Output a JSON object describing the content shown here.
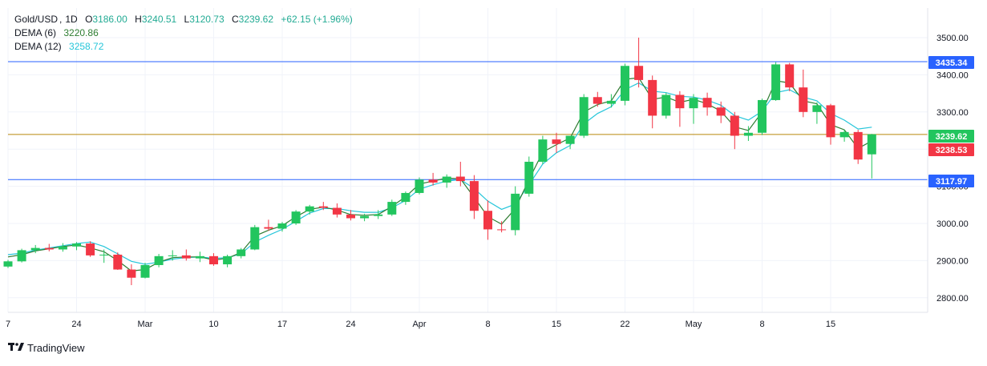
{
  "header": {
    "symbol": "Gold/USD",
    "interval": "1D",
    "o_label": "O",
    "open": "3186.00",
    "h_label": "H",
    "high": "3240.51",
    "l_label": "L",
    "low": "3120.73",
    "c_label": "C",
    "close": "3239.62",
    "change": "+62.15 (+1.96%)"
  },
  "indicators": [
    {
      "name": "DEMA (6)",
      "value": "3220.86",
      "color": "#2e7d32"
    },
    {
      "name": "DEMA (12)",
      "value": "3258.72",
      "color": "#26c6da"
    }
  ],
  "brand": {
    "name": "TradingView",
    "icon": "tradingview-logo-icon"
  },
  "colors": {
    "up": "#22c55e",
    "down": "#f23645",
    "h_line": "#2962ff",
    "price_line": "#b8860b"
  },
  "chart_data": {
    "type": "candlestick",
    "y_axis": {
      "ticks": [
        "3500.00",
        "3400.00",
        "3300.00",
        "3200.00",
        "3100.00",
        "3000.00",
        "2900.00",
        "2800.00"
      ],
      "ylim": [
        2780,
        3520
      ]
    },
    "x_axis": {
      "ticks": [
        "7",
        "24",
        "Mar",
        "10",
        "17",
        "24",
        "Apr",
        "8",
        "15",
        "22",
        "May",
        "8",
        "15"
      ]
    },
    "price_labels": [
      {
        "value": 3435.34,
        "text": "3435.34",
        "kind": "hline",
        "color": "#2962ff"
      },
      {
        "value": 3239.62,
        "text": "3239.62",
        "kind": "last",
        "color": "#22c55e"
      },
      {
        "value": 3238.53,
        "text": "3238.53",
        "kind": "last",
        "color": "#f23645"
      },
      {
        "value": 3117.97,
        "text": "3117.97",
        "kind": "hline",
        "color": "#2962ff"
      }
    ],
    "candles": [
      [
        2884,
        2902,
        2880,
        2898
      ],
      [
        2898,
        2932,
        2895,
        2928
      ],
      [
        2928,
        2942,
        2920,
        2934
      ],
      [
        2934,
        2945,
        2925,
        2930
      ],
      [
        2930,
        2947,
        2924,
        2938
      ],
      [
        2938,
        2950,
        2928,
        2946
      ],
      [
        2946,
        2952,
        2910,
        2914
      ],
      [
        2914,
        2930,
        2894,
        2916
      ],
      [
        2916,
        2922,
        2875,
        2876
      ],
      [
        2876,
        2890,
        2834,
        2854
      ],
      [
        2854,
        2894,
        2852,
        2888
      ],
      [
        2888,
        2918,
        2882,
        2912
      ],
      [
        2912,
        2928,
        2900,
        2914
      ],
      [
        2914,
        2930,
        2900,
        2906
      ],
      [
        2906,
        2924,
        2896,
        2912
      ],
      [
        2912,
        2920,
        2886,
        2890
      ],
      [
        2890,
        2916,
        2882,
        2912
      ],
      [
        2912,
        2934,
        2906,
        2930
      ],
      [
        2930,
        2996,
        2928,
        2990
      ],
      [
        2990,
        3010,
        2980,
        2986
      ],
      [
        2986,
        3004,
        2978,
        3000
      ],
      [
        3000,
        3036,
        2996,
        3032
      ],
      [
        3032,
        3050,
        3024,
        3046
      ],
      [
        3046,
        3058,
        3036,
        3042
      ],
      [
        3042,
        3054,
        3016,
        3024
      ],
      [
        3024,
        3036,
        3008,
        3014
      ],
      [
        3014,
        3026,
        3006,
        3020
      ],
      [
        3020,
        3036,
        3012,
        3024
      ],
      [
        3024,
        3064,
        3020,
        3058
      ],
      [
        3058,
        3086,
        3050,
        3082
      ],
      [
        3082,
        3124,
        3078,
        3118
      ],
      [
        3118,
        3136,
        3102,
        3110
      ],
      [
        3110,
        3132,
        3096,
        3126
      ],
      [
        3126,
        3166,
        3100,
        3114
      ],
      [
        3114,
        3130,
        3012,
        3034
      ],
      [
        3034,
        3062,
        2956,
        2984
      ],
      [
        2984,
        3006,
        2976,
        2982
      ],
      [
        2982,
        3100,
        2968,
        3080
      ],
      [
        3080,
        3180,
        3072,
        3166
      ],
      [
        3166,
        3236,
        3160,
        3226
      ],
      [
        3226,
        3244,
        3190,
        3214
      ],
      [
        3214,
        3236,
        3200,
        3236
      ],
      [
        3236,
        3348,
        3230,
        3340
      ],
      [
        3340,
        3354,
        3314,
        3322
      ],
      [
        3322,
        3348,
        3312,
        3330
      ],
      [
        3330,
        3430,
        3318,
        3424
      ],
      [
        3424,
        3500,
        3366,
        3386
      ],
      [
        3386,
        3398,
        3256,
        3290
      ],
      [
        3290,
        3352,
        3282,
        3346
      ],
      [
        3346,
        3356,
        3260,
        3310
      ],
      [
        3310,
        3348,
        3268,
        3338
      ],
      [
        3338,
        3352,
        3290,
        3312
      ],
      [
        3312,
        3328,
        3270,
        3290
      ],
      [
        3290,
        3300,
        3200,
        3236
      ],
      [
        3236,
        3262,
        3222,
        3244
      ],
      [
        3244,
        3336,
        3238,
        3332
      ],
      [
        3332,
        3434,
        3330,
        3428
      ],
      [
        3428,
        3432,
        3356,
        3366
      ],
      [
        3366,
        3414,
        3286,
        3300
      ],
      [
        3300,
        3326,
        3268,
        3318
      ],
      [
        3318,
        3322,
        3212,
        3232
      ],
      [
        3232,
        3252,
        3220,
        3246
      ],
      [
        3246,
        3252,
        3160,
        3172
      ],
      [
        3186,
        3241,
        3121,
        3240
      ]
    ],
    "dema6": [
      2910,
      2916,
      2926,
      2932,
      2938,
      2942,
      2934,
      2924,
      2900,
      2872,
      2876,
      2896,
      2908,
      2910,
      2910,
      2902,
      2906,
      2922,
      2966,
      2982,
      2994,
      3018,
      3038,
      3044,
      3036,
      3024,
      3022,
      3024,
      3046,
      3072,
      3106,
      3114,
      3122,
      3120,
      3070,
      3018,
      2998,
      3040,
      3118,
      3192,
      3212,
      3230,
      3300,
      3320,
      3330,
      3388,
      3392,
      3334,
      3340,
      3326,
      3334,
      3322,
      3302,
      3260,
      3250,
      3300,
      3384,
      3378,
      3330,
      3322,
      3266,
      3252,
      3202,
      3222
    ],
    "dema12": [
      2916,
      2920,
      2928,
      2934,
      2940,
      2946,
      2950,
      2938,
      2918,
      2898,
      2890,
      2896,
      2904,
      2908,
      2910,
      2906,
      2908,
      2918,
      2950,
      2968,
      2984,
      3006,
      3028,
      3040,
      3040,
      3034,
      3030,
      3030,
      3042,
      3062,
      3092,
      3104,
      3114,
      3118,
      3094,
      3060,
      3038,
      3052,
      3104,
      3160,
      3190,
      3210,
      3268,
      3296,
      3314,
      3360,
      3378,
      3356,
      3352,
      3342,
      3340,
      3332,
      3318,
      3290,
      3278,
      3302,
      3352,
      3360,
      3340,
      3330,
      3296,
      3278,
      3254,
      3259
    ]
  }
}
